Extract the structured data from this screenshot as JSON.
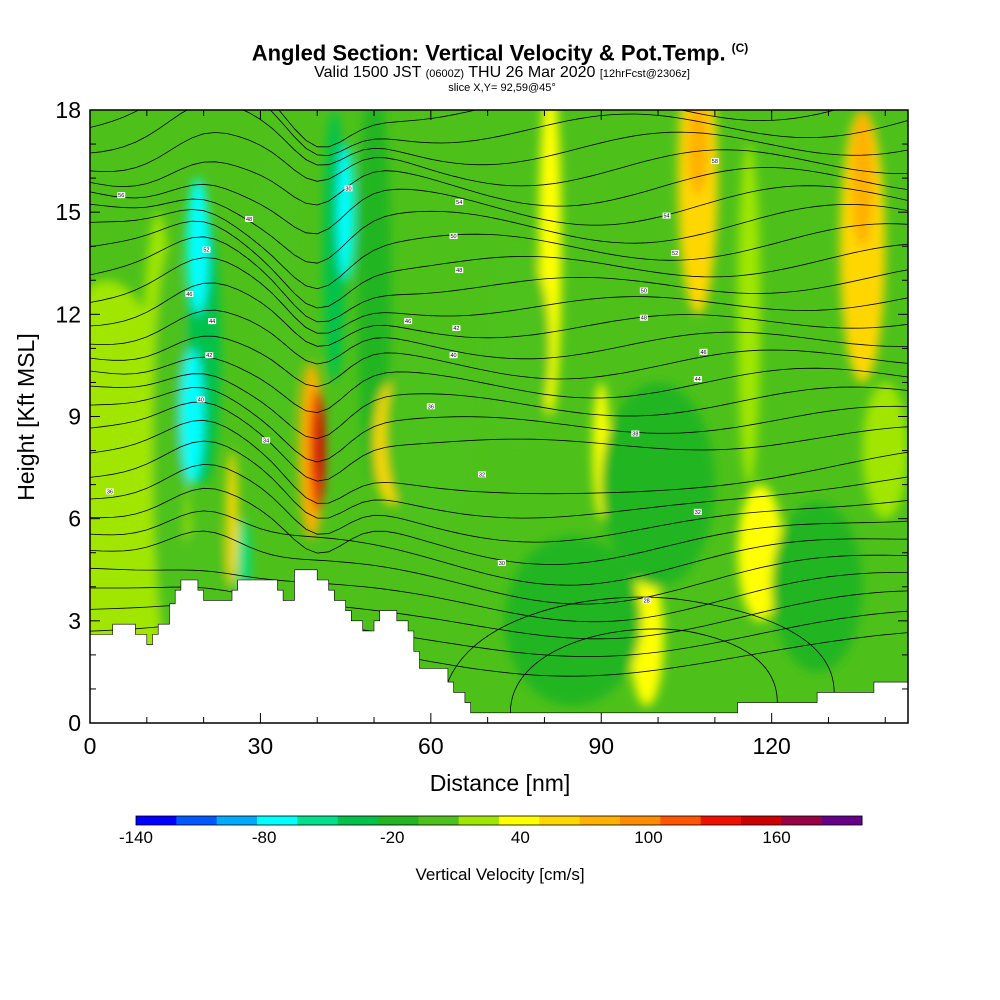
{
  "header": {
    "title": "Angled Section: Vertical Velocity & Pot.Temp.",
    "title_mark": "(C)",
    "valid_prefix": "Valid 1500 JST",
    "valid_utc": "(0600Z)",
    "valid_date": "THU 26 Mar 2020",
    "forecast": "[12hrFcst@2306z]",
    "slice": "slice X,Y= 92,59@45°"
  },
  "chart_data": {
    "type": "heatmap",
    "xlabel": "Distance [nm]",
    "ylabel": "Height [Kft MSL]",
    "xlim": [
      0,
      144
    ],
    "ylim": [
      0,
      18
    ],
    "xticks": [
      0,
      30,
      60,
      90,
      120
    ],
    "yticks": [
      0,
      3,
      6,
      9,
      12,
      15,
      18
    ],
    "colorbar": {
      "label": "Vertical Velocity [cm/s]",
      "range": [
        -140,
        200
      ],
      "step": 20,
      "tick_values": [
        -140,
        -80,
        -20,
        40,
        100,
        160
      ],
      "tick_labels": [
        "-140",
        "-80",
        "-20",
        "40",
        "100",
        "160"
      ],
      "colors": [
        "#0000ff",
        "#0059ff",
        "#00aaff",
        "#00ffff",
        "#00e08a",
        "#00c24b",
        "#21b521",
        "#4dc11a",
        "#a0e600",
        "#ffff00",
        "#ffd700",
        "#ffb000",
        "#ff8c00",
        "#ff5500",
        "#ee1100",
        "#cc0000",
        "#990044",
        "#660088"
      ]
    },
    "terrain_kft": [
      [
        0,
        2.6
      ],
      [
        4,
        2.6
      ],
      [
        4,
        2.9
      ],
      [
        8,
        2.9
      ],
      [
        8,
        2.6
      ],
      [
        10,
        2.6
      ],
      [
        10,
        2.3
      ],
      [
        11,
        2.3
      ],
      [
        11,
        2.6
      ],
      [
        12,
        2.6
      ],
      [
        12,
        2.9
      ],
      [
        14,
        2.9
      ],
      [
        14,
        3.5
      ],
      [
        15,
        3.5
      ],
      [
        15,
        3.9
      ],
      [
        16,
        3.9
      ],
      [
        16,
        4.2
      ],
      [
        19,
        4.2
      ],
      [
        19,
        3.9
      ],
      [
        20,
        3.9
      ],
      [
        20,
        3.6
      ],
      [
        25,
        3.6
      ],
      [
        25,
        3.9
      ],
      [
        26,
        3.9
      ],
      [
        26,
        4.2
      ],
      [
        33,
        4.2
      ],
      [
        33,
        3.9
      ],
      [
        34,
        3.9
      ],
      [
        34,
        3.6
      ],
      [
        36,
        3.6
      ],
      [
        36,
        4.5
      ],
      [
        40,
        4.5
      ],
      [
        40,
        4.2
      ],
      [
        42,
        4.2
      ],
      [
        42,
        3.9
      ],
      [
        43,
        3.9
      ],
      [
        43,
        3.6
      ],
      [
        45,
        3.6
      ],
      [
        45,
        3.3
      ],
      [
        46,
        3.3
      ],
      [
        46,
        3.0
      ],
      [
        48,
        3.0
      ],
      [
        48,
        2.7
      ],
      [
        50,
        2.7
      ],
      [
        50,
        3.0
      ],
      [
        51,
        3.0
      ],
      [
        51,
        3.3
      ],
      [
        54,
        3.3
      ],
      [
        54,
        3.0
      ],
      [
        56,
        3.0
      ],
      [
        56,
        2.7
      ],
      [
        57,
        2.7
      ],
      [
        57,
        2.1
      ],
      [
        58,
        2.1
      ],
      [
        58,
        1.6
      ],
      [
        63,
        1.6
      ],
      [
        63,
        1.2
      ],
      [
        64,
        1.2
      ],
      [
        64,
        0.9
      ],
      [
        66,
        0.9
      ],
      [
        66,
        0.6
      ],
      [
        67,
        0.6
      ],
      [
        67,
        0.3
      ],
      [
        114,
        0.3
      ],
      [
        114,
        0.6
      ],
      [
        128,
        0.6
      ],
      [
        128,
        0.9
      ],
      [
        138,
        0.9
      ],
      [
        138,
        1.2
      ],
      [
        144,
        1.2
      ]
    ],
    "theta_contour_labels": [
      {
        "text": "56",
        "x": 5.5,
        "y": 15.5
      },
      {
        "text": "48",
        "x": 28,
        "y": 14.8
      },
      {
        "text": "30",
        "x": 45.5,
        "y": 15.7
      },
      {
        "text": "54",
        "x": 65,
        "y": 15.3
      },
      {
        "text": "52",
        "x": 20.5,
        "y": 13.9
      },
      {
        "text": "50",
        "x": 64,
        "y": 14.3
      },
      {
        "text": "48",
        "x": 65,
        "y": 13.3
      },
      {
        "text": "46",
        "x": 17.5,
        "y": 12.6
      },
      {
        "text": "44",
        "x": 21.5,
        "y": 11.8
      },
      {
        "text": "46",
        "x": 56,
        "y": 11.8
      },
      {
        "text": "42",
        "x": 64.5,
        "y": 11.6
      },
      {
        "text": "42",
        "x": 21,
        "y": 10.8
      },
      {
        "text": "40",
        "x": 64,
        "y": 10.8
      },
      {
        "text": "40",
        "x": 19.5,
        "y": 9.5
      },
      {
        "text": "36",
        "x": 60,
        "y": 9.3
      },
      {
        "text": "34",
        "x": 31,
        "y": 8.3
      },
      {
        "text": "32",
        "x": 69,
        "y": 7.3
      },
      {
        "text": "58",
        "x": 110,
        "y": 16.5
      },
      {
        "text": "54",
        "x": 101.5,
        "y": 14.9
      },
      {
        "text": "52",
        "x": 103,
        "y": 13.8
      },
      {
        "text": "50",
        "x": 97.5,
        "y": 12.7
      },
      {
        "text": "48",
        "x": 97.5,
        "y": 11.9
      },
      {
        "text": "46",
        "x": 108,
        "y": 10.9
      },
      {
        "text": "44",
        "x": 107,
        "y": 10.1
      },
      {
        "text": "38",
        "x": 96,
        "y": 8.5
      },
      {
        "text": "32",
        "x": 107,
        "y": 6.2
      },
      {
        "text": "30",
        "x": 72.5,
        "y": 4.7
      },
      {
        "text": "28",
        "x": 98,
        "y": 3.6
      },
      {
        "text": "36",
        "x": 3.5,
        "y": 6.8
      }
    ]
  }
}
